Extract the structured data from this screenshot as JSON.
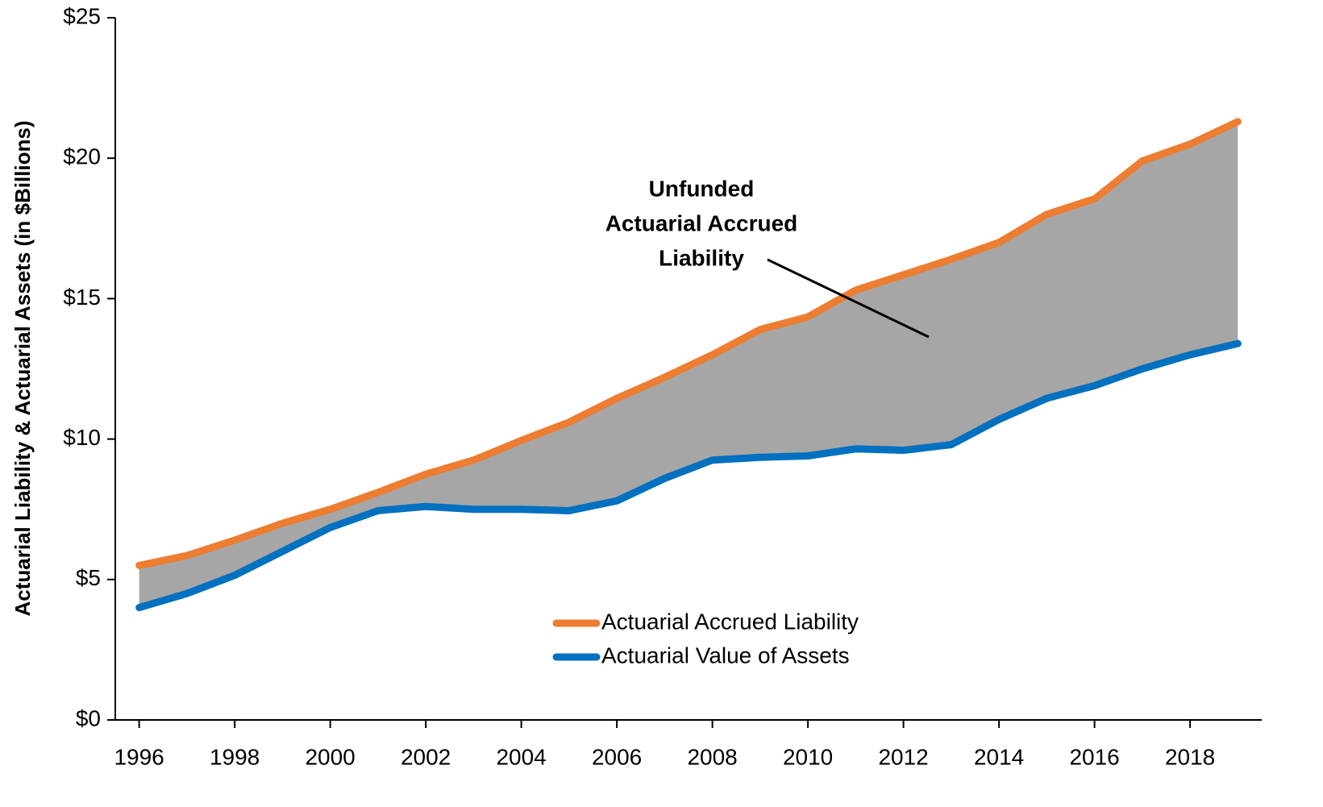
{
  "chart_data": {
    "type": "line",
    "y_label": "Actuarial Liability & Actuarial Assets (in $Billions)",
    "annotation": [
      "Unfunded",
      "Actuarial Accrued",
      "Liability"
    ],
    "x": [
      1996,
      1997,
      1998,
      1999,
      2000,
      2001,
      2002,
      2003,
      2004,
      2005,
      2006,
      2007,
      2008,
      2009,
      2010,
      2011,
      2012,
      2013,
      2014,
      2015,
      2016,
      2017,
      2018,
      2019
    ],
    "series": [
      {
        "name": "Actuarial Accrued Liability",
        "color": "#ed7d31",
        "values": [
          5.5,
          5.85,
          6.4,
          7.0,
          7.5,
          8.1,
          8.75,
          9.25,
          9.95,
          10.6,
          11.45,
          12.2,
          13.0,
          13.9,
          14.35,
          15.3,
          15.85,
          16.4,
          17.0,
          18.0,
          18.55,
          19.9,
          20.5,
          21.3
        ]
      },
      {
        "name": "Actuarial Value of Assets",
        "color": "#0070c0",
        "values": [
          4.0,
          4.5,
          5.15,
          6.0,
          6.85,
          7.45,
          7.6,
          7.5,
          7.5,
          7.45,
          7.8,
          8.6,
          9.25,
          9.35,
          9.4,
          9.65,
          9.6,
          9.8,
          10.7,
          11.45,
          11.9,
          12.5,
          13.0,
          13.4
        ]
      }
    ],
    "fill_between_color": "#a6a6a6",
    "xlim": [
      1995.5,
      2019.5
    ],
    "xticks": [
      1996,
      1998,
      2000,
      2002,
      2004,
      2006,
      2008,
      2010,
      2012,
      2014,
      2016,
      2018
    ],
    "ylim": [
      0,
      25
    ],
    "yticks": [
      {
        "value": 0,
        "label": "$0"
      },
      {
        "value": 5,
        "label": "$5"
      },
      {
        "value": 10,
        "label": "$10"
      },
      {
        "value": 15,
        "label": "$15"
      },
      {
        "value": 20,
        "label": "$20"
      },
      {
        "value": 25,
        "label": "$25"
      }
    ],
    "grid": false
  }
}
